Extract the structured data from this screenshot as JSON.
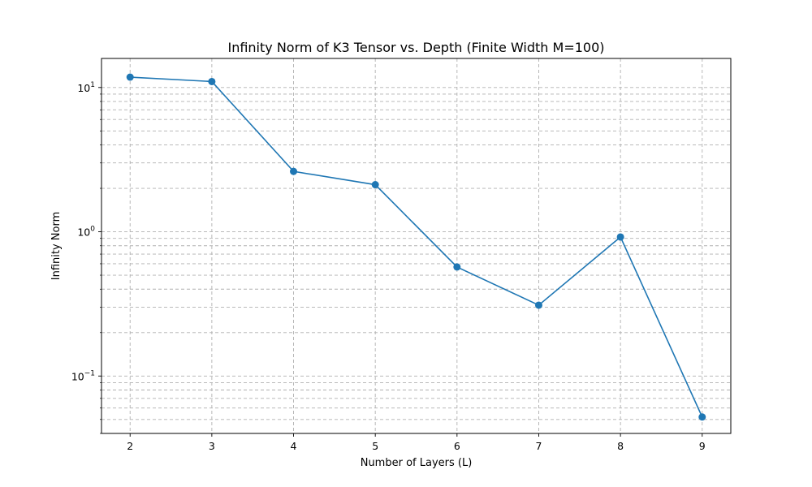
{
  "chart_data": {
    "type": "line",
    "title": "Infinity Norm of K3 Tensor vs. Depth (Finite Width M=100)",
    "xlabel": "Number of Layers (L)",
    "ylabel": "Infinity Norm",
    "x": [
      2,
      3,
      4,
      5,
      6,
      7,
      8,
      9
    ],
    "series": [
      {
        "values": [
          11.8,
          11.0,
          2.62,
          2.12,
          0.57,
          0.31,
          0.92,
          0.052
        ],
        "color": "#1f77b4",
        "marker": "circle"
      }
    ],
    "xlim": [
      1.65,
      9.35
    ],
    "ylim": [
      0.04,
      15.9
    ],
    "yscale": "log",
    "x_ticks": [
      "2",
      "3",
      "4",
      "5",
      "6",
      "7",
      "8",
      "9"
    ],
    "y_ticks": [
      "10^-1",
      "10^0",
      "10^1"
    ],
    "grid": true,
    "grid_which": "both",
    "legend": false
  }
}
